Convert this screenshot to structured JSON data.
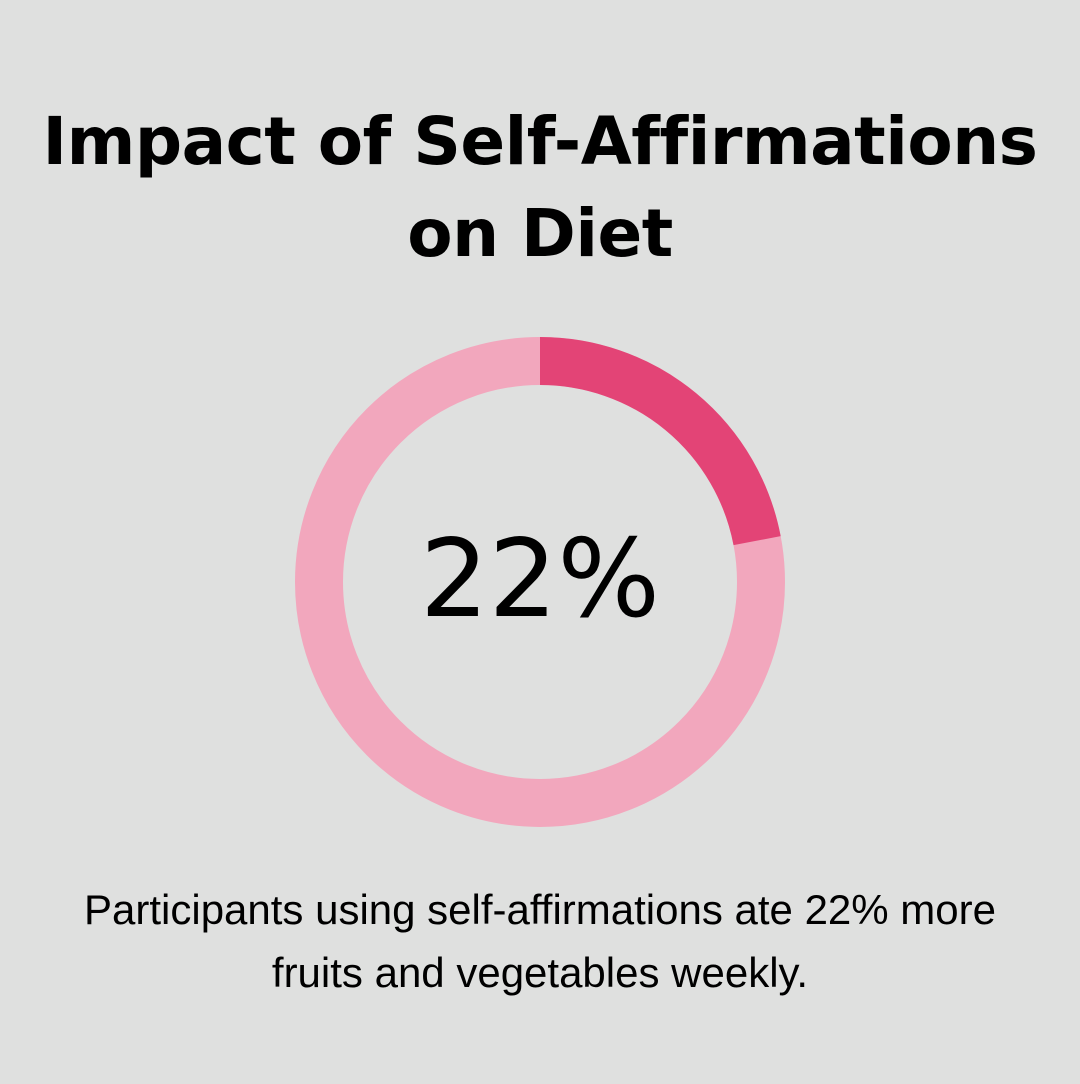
{
  "title": "Impact of Self-Affirmations on Diet",
  "center_label": "22%",
  "caption": "Participants using self-affirmations ate 22% more fruits and vegetables weekly.",
  "chart_data": {
    "type": "pie",
    "style": "donut",
    "title": "Impact of Self-Affirmations on Diet",
    "values": [
      22,
      78
    ],
    "colors": [
      "#e34476",
      "#f2a7bd"
    ],
    "center_label": "22%"
  }
}
